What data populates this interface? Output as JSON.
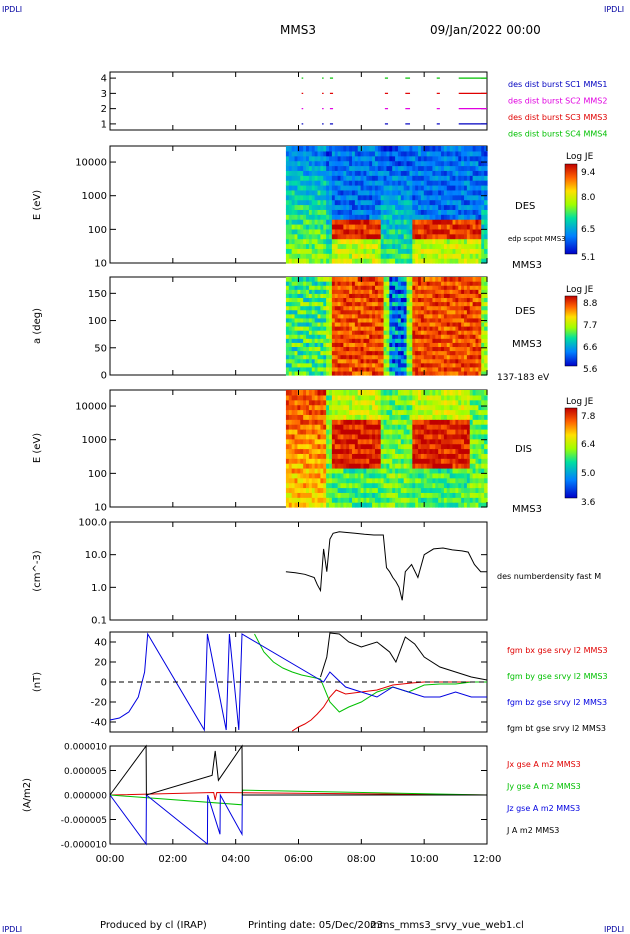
{
  "header": {
    "corner_left": "IPDLI",
    "corner_right": "IPDLI",
    "spacecraft": "MMS3",
    "date": "09/Jan/2022 00:00"
  },
  "footer": {
    "produced_by": "Produced by cl (IRAP)",
    "printing_date": "Printing date: 05/Dec/2023",
    "filename": "mms_mms3_srvy_vue_web1.cl",
    "corner_left": "IPDLI",
    "corner_right": "IPDLI"
  },
  "time_axis": {
    "ticks": [
      "00:00",
      "02:00",
      "04:00",
      "06:00",
      "08:00",
      "10:00",
      "12:00"
    ],
    "range_hours": [
      0,
      12
    ]
  },
  "colors": {
    "bx": "#e00000",
    "by": "#00c000",
    "bz": "#0000e0",
    "bt": "#000000",
    "sc1": "#0000c0",
    "sc2": "#e000e0",
    "sc3": "#e00000",
    "sc4": "#00c000"
  },
  "chart_data": [
    {
      "type": "scatter",
      "panel": "burst-availability",
      "y_ticks": [
        "1",
        "2",
        "3",
        "4"
      ],
      "ylim": [
        0.6,
        4.4
      ],
      "legend": [
        "des dist burst SC1 MMS1",
        "des dist burst SC2 MMS2",
        "des dist burst SC3 MMS3",
        "des dist burst SC4 MMS4"
      ],
      "series": [
        {
          "name": "des dist burst SC1 MMS1",
          "y": 1,
          "intervals_h": [
            [
              6.1,
              6.15
            ],
            [
              6.75,
              6.8
            ],
            [
              7.0,
              7.1
            ],
            [
              8.75,
              8.85
            ],
            [
              9.4,
              9.55
            ],
            [
              10.4,
              10.5
            ],
            [
              11.1,
              12.0
            ]
          ]
        },
        {
          "name": "des dist burst SC2 MMS2",
          "y": 2,
          "intervals_h": [
            [
              6.1,
              6.15
            ],
            [
              6.75,
              6.8
            ],
            [
              7.0,
              7.1
            ],
            [
              8.75,
              8.85
            ],
            [
              9.4,
              9.55
            ],
            [
              10.4,
              10.5
            ],
            [
              11.1,
              12.0
            ]
          ]
        },
        {
          "name": "des dist burst SC3 MMS3",
          "y": 3,
          "intervals_h": [
            [
              6.1,
              6.15
            ],
            [
              6.75,
              6.8
            ],
            [
              7.0,
              7.1
            ],
            [
              8.75,
              8.85
            ],
            [
              9.4,
              9.55
            ],
            [
              10.4,
              10.5
            ],
            [
              11.1,
              12.0
            ]
          ]
        },
        {
          "name": "des dist burst SC4 MMS4",
          "y": 4,
          "intervals_h": [
            [
              6.1,
              6.15
            ],
            [
              6.75,
              6.8
            ],
            [
              7.0,
              7.1
            ],
            [
              8.75,
              8.85
            ],
            [
              9.4,
              9.55
            ],
            [
              10.4,
              10.5
            ],
            [
              11.1,
              12.0
            ]
          ]
        }
      ]
    },
    {
      "type": "heatmap",
      "panel": "des-energy-spectrogram",
      "ylabel": "E (eV)",
      "y_ticks": [
        "10",
        "100",
        "1000",
        "10000"
      ],
      "y_scale": "log",
      "ylim": [
        10,
        30000
      ],
      "label": "DES",
      "sublabel": "MMS3",
      "overlay_label": "edp scpot MMS3",
      "colorbar": {
        "title": "Log JE",
        "ticks": [
          "9.4",
          "8.0",
          "6.5",
          "5.1"
        ],
        "range": [
          5.1,
          9.4
        ]
      }
    },
    {
      "type": "heatmap",
      "panel": "des-pitch-angle",
      "ylabel": "a (deg)",
      "y_ticks": [
        "0",
        "50",
        "100",
        "150"
      ],
      "ylim": [
        0,
        180
      ],
      "label": "DES",
      "sublabel": "MMS3",
      "energy_band": "137-183 eV",
      "colorbar": {
        "title": "Log JE",
        "ticks": [
          "8.8",
          "7.7",
          "6.6",
          "5.6"
        ],
        "range": [
          5.6,
          8.8
        ]
      }
    },
    {
      "type": "heatmap",
      "panel": "dis-energy-spectrogram",
      "ylabel": "E (eV)",
      "y_ticks": [
        "10",
        "100",
        "1000",
        "10000"
      ],
      "y_scale": "log",
      "ylim": [
        10,
        30000
      ],
      "label": "DIS",
      "sublabel": "MMS3",
      "colorbar": {
        "title": "Log JE",
        "ticks": [
          "7.8",
          "6.4",
          "5.0",
          "3.6"
        ],
        "range": [
          3.6,
          7.8
        ]
      }
    },
    {
      "type": "line",
      "panel": "density",
      "ylabel": "(cm^-3)",
      "y_ticks": [
        "0.1",
        "1.0",
        "10.0",
        "100.0"
      ],
      "y_scale": "log",
      "ylim": [
        0.1,
        100
      ],
      "legend": [
        "des numberdensity fast M"
      ],
      "series": [
        {
          "name": "des numberdensity fast M",
          "x": [
            5.6,
            5.9,
            6.2,
            6.5,
            6.6,
            6.7,
            6.8,
            6.9,
            7.0,
            7.1,
            7.3,
            7.5,
            7.8,
            8.1,
            8.4,
            8.7,
            8.8,
            8.9,
            9.0,
            9.1,
            9.2,
            9.3,
            9.4,
            9.6,
            9.8,
            10.0,
            10.3,
            10.6,
            10.9,
            11.2,
            11.4,
            11.6,
            11.8,
            12.0
          ],
          "y": [
            3,
            2.8,
            2.5,
            2.0,
            1.2,
            0.8,
            15,
            3,
            30,
            45,
            50,
            48,
            45,
            42,
            40,
            40,
            4,
            3,
            2,
            1.5,
            1.0,
            0.4,
            3,
            5,
            2,
            10,
            15,
            16,
            14,
            13,
            12,
            5,
            3,
            3
          ]
        }
      ]
    },
    {
      "type": "line",
      "panel": "magnetic-field",
      "ylabel": "(nT)",
      "y_ticks": [
        "-40",
        "-20",
        "0",
        "20",
        "40"
      ],
      "ylim": [
        -50,
        50
      ],
      "legend": [
        "fgm bx gse srvy l2 MMS3",
        "fgm by gse srvy l2 MMS3",
        "fgm bz gse srvy l2 MMS3",
        "fgm bt gse srvy l2 MMS3"
      ],
      "series": [
        {
          "name": "fgm bx gse srvy l2 MMS3",
          "x": [
            5.8,
            6.0,
            6.2,
            6.4,
            6.6,
            6.8,
            7.0,
            7.2,
            7.5,
            8.0,
            8.5,
            8.8,
            9.0,
            9.3,
            9.6,
            10.0,
            10.5,
            11.0,
            11.5,
            12.0
          ],
          "y": [
            -49,
            -45,
            -42,
            -38,
            -32,
            -25,
            -15,
            -8,
            -12,
            -10,
            -8,
            -5,
            -3,
            -2,
            -1,
            0,
            0,
            0,
            0,
            0
          ]
        },
        {
          "name": "fgm by gse srvy l2 MMS3",
          "x": [
            4.6,
            4.9,
            5.2,
            5.5,
            5.8,
            6.1,
            6.4,
            6.7,
            7.0,
            7.3,
            7.6,
            8.0,
            8.5,
            9.0,
            9.5,
            10.0,
            10.5,
            11.0,
            11.5,
            12.0
          ],
          "y": [
            48,
            30,
            20,
            14,
            10,
            7,
            5,
            3,
            -20,
            -30,
            -25,
            -20,
            -10,
            -5,
            -10,
            -3,
            -2,
            -2,
            0,
            0
          ]
        },
        {
          "name": "fgm bz gse srvy l2 MMS3",
          "x": [
            0.0,
            0.3,
            0.6,
            0.9,
            1.1,
            1.2,
            3.0,
            3.1,
            3.7,
            3.8,
            4.1,
            4.2,
            6.8,
            7.0,
            7.5,
            8.0,
            8.5,
            9.0,
            9.5,
            10.0,
            10.5,
            11.0,
            11.5,
            12.0
          ],
          "y": [
            -38,
            -36,
            -30,
            -15,
            10,
            48,
            -48,
            48,
            -48,
            48,
            -48,
            48,
            0,
            10,
            -5,
            -10,
            -15,
            -5,
            -10,
            -15,
            -15,
            -10,
            -15,
            -15
          ]
        },
        {
          "name": "fgm bt gse srvy l2 MMS3",
          "x": [
            6.7,
            6.9,
            7.0,
            7.3,
            7.6,
            8.0,
            8.5,
            8.9,
            9.1,
            9.4,
            9.7,
            10.0,
            10.5,
            11.0,
            11.5,
            12.0
          ],
          "y": [
            5,
            25,
            49,
            48,
            40,
            35,
            40,
            30,
            20,
            45,
            38,
            25,
            15,
            10,
            5,
            2
          ]
        }
      ]
    },
    {
      "type": "line",
      "panel": "current-density",
      "ylabel": "(A/m2)",
      "y_ticks": [
        "0.000010",
        "0.000005",
        "0.000000",
        "-0.000005",
        "-0.000010"
      ],
      "ylim": [
        -1e-05,
        1e-05
      ],
      "legend": [
        "Jx gse A m2 MMS3",
        "Jy gse A m2 MMS3",
        "Jz gse A m2 MMS3",
        "J A m2 MMS3"
      ],
      "series": [
        {
          "name": "Jx gse A m2 MMS3",
          "x": [
            0,
            3.3,
            3.35,
            3.4,
            12
          ],
          "y": [
            0,
            5e-07,
            -1e-06,
            5e-07,
            0
          ]
        },
        {
          "name": "Jy gse A m2 MMS3",
          "x": [
            0,
            4.2,
            4.22,
            12
          ],
          "y": [
            0,
            -2e-06,
            1e-06,
            0
          ]
        },
        {
          "name": "Jz gse A m2 MMS3",
          "x": [
            0,
            1.15,
            1.16,
            3.1,
            3.11,
            3.5,
            3.51,
            4.2,
            4.21,
            12
          ],
          "y": [
            0,
            -1e-05,
            0,
            -1e-05,
            0,
            -8e-06,
            0,
            -8e-06,
            0,
            0
          ]
        },
        {
          "name": "J A m2 MMS3",
          "x": [
            0,
            1.15,
            1.16,
            3.25,
            3.35,
            3.45,
            4.2,
            4.21,
            12
          ],
          "y": [
            0,
            1e-05,
            0,
            4e-06,
            9e-06,
            3e-06,
            1e-05,
            0,
            0
          ]
        }
      ]
    }
  ]
}
